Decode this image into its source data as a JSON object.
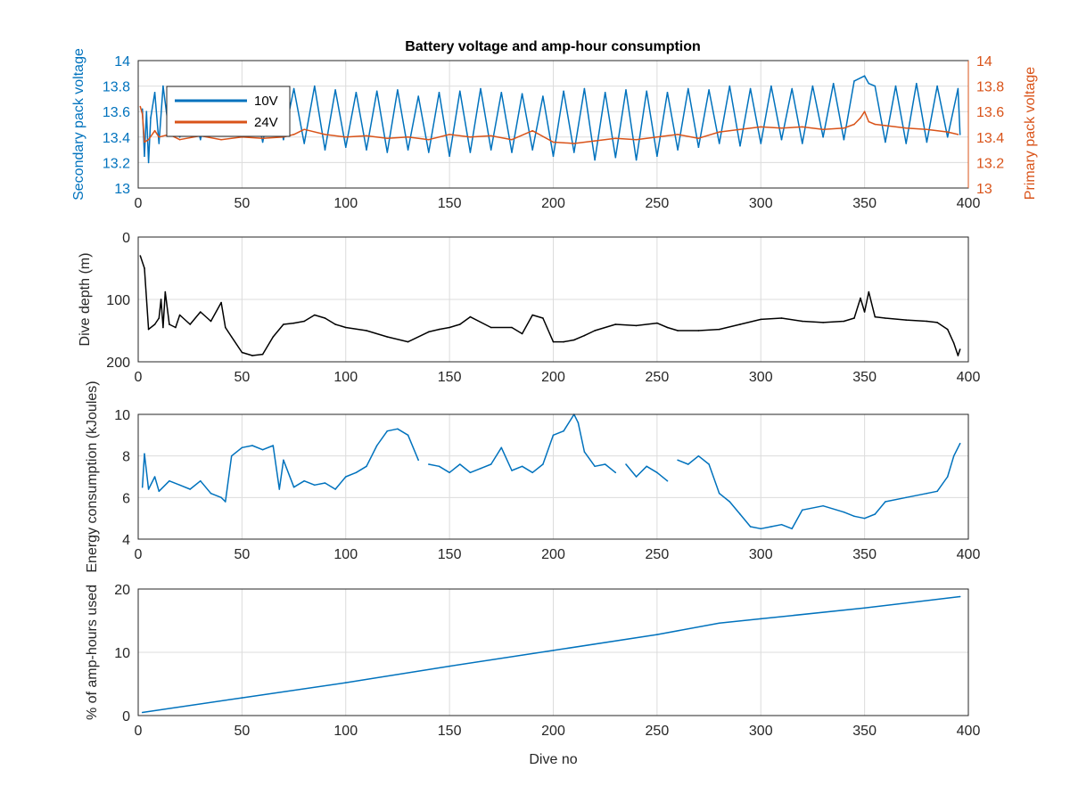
{
  "colors": {
    "blue": "#0072BD",
    "orange": "#D95319",
    "black": "#000000",
    "axis": "#262626",
    "grid": "#dcdcdc"
  },
  "chart_data": [
    {
      "type": "line",
      "title": "Battery voltage and amp-hour consumption",
      "xlabel": "",
      "ylabel": "Secondary pack voltage",
      "ylabel_right": "Primary pack voltage",
      "xlim": [
        0,
        400
      ],
      "ylim": [
        13,
        14
      ],
      "ylim_right": [
        13,
        14
      ],
      "x_ticks": [
        "0",
        "50",
        "100",
        "150",
        "200",
        "250",
        "300",
        "350",
        "400"
      ],
      "y_ticks": [
        "13",
        "13.2",
        "13.4",
        "13.6",
        "13.8",
        "14"
      ],
      "y_ticks_right": [
        "13",
        "13.2",
        "13.4",
        "13.6",
        "13.8",
        "14"
      ],
      "grid": true,
      "legend": "top-left",
      "series": [
        {
          "name": "10V",
          "axis": "left",
          "x": [
            2,
            3,
            4,
            5,
            6,
            8,
            10,
            12,
            15,
            18,
            20,
            25,
            30,
            35,
            40,
            45,
            50,
            55,
            60,
            65,
            70,
            75,
            80,
            85,
            90,
            95,
            100,
            105,
            110,
            115,
            120,
            125,
            130,
            135,
            140,
            145,
            150,
            155,
            160,
            165,
            170,
            175,
            180,
            185,
            190,
            195,
            200,
            205,
            210,
            215,
            220,
            225,
            230,
            235,
            240,
            245,
            250,
            255,
            260,
            265,
            270,
            275,
            280,
            285,
            290,
            295,
            300,
            305,
            310,
            315,
            320,
            325,
            330,
            335,
            340,
            345,
            350,
            352,
            355,
            360,
            365,
            370,
            375,
            380,
            385,
            390,
            395,
            396
          ],
          "values": [
            13.62,
            13.25,
            13.6,
            13.2,
            13.55,
            13.75,
            13.35,
            13.8,
            13.42,
            13.75,
            13.4,
            13.72,
            13.38,
            13.75,
            13.45,
            13.72,
            13.4,
            13.76,
            13.36,
            13.74,
            13.38,
            13.78,
            13.35,
            13.8,
            13.3,
            13.77,
            13.32,
            13.75,
            13.3,
            13.76,
            13.28,
            13.77,
            13.3,
            13.72,
            13.28,
            13.75,
            13.25,
            13.76,
            13.28,
            13.78,
            13.3,
            13.75,
            13.28,
            13.74,
            13.3,
            13.72,
            13.25,
            13.76,
            13.28,
            13.78,
            13.22,
            13.75,
            13.24,
            13.77,
            13.22,
            13.76,
            13.25,
            13.75,
            13.3,
            13.78,
            13.32,
            13.77,
            13.35,
            13.8,
            13.33,
            13.78,
            13.35,
            13.8,
            13.38,
            13.78,
            13.35,
            13.8,
            13.4,
            13.82,
            13.38,
            13.84,
            13.88,
            13.82,
            13.8,
            13.36,
            13.8,
            13.35,
            13.82,
            13.36,
            13.8,
            13.4,
            13.78,
            13.42
          ]
        },
        {
          "name": "24V",
          "axis": "right",
          "x": [
            1,
            2,
            3,
            5,
            8,
            10,
            15,
            20,
            30,
            40,
            50,
            60,
            70,
            75,
            80,
            90,
            100,
            110,
            120,
            130,
            140,
            150,
            160,
            170,
            180,
            190,
            200,
            210,
            220,
            230,
            240,
            250,
            260,
            270,
            280,
            290,
            300,
            310,
            320,
            330,
            340,
            345,
            348,
            350,
            352,
            355,
            360,
            370,
            380,
            390,
            395
          ],
          "values": [
            13.64,
            13.58,
            13.36,
            13.38,
            13.45,
            13.4,
            13.42,
            13.38,
            13.41,
            13.38,
            13.4,
            13.39,
            13.4,
            13.42,
            13.46,
            13.42,
            13.4,
            13.41,
            13.39,
            13.4,
            13.38,
            13.42,
            13.4,
            13.41,
            13.38,
            13.45,
            13.36,
            13.35,
            13.37,
            13.39,
            13.38,
            13.4,
            13.42,
            13.39,
            13.44,
            13.46,
            13.48,
            13.47,
            13.48,
            13.46,
            13.47,
            13.5,
            13.55,
            13.6,
            13.52,
            13.5,
            13.49,
            13.47,
            13.46,
            13.44,
            13.42
          ]
        }
      ]
    },
    {
      "type": "line",
      "xlabel": "",
      "ylabel": "Dive depth (m)",
      "xlim": [
        0,
        400
      ],
      "ylim": [
        0,
        200
      ],
      "y_reversed": true,
      "x_ticks": [
        "0",
        "50",
        "100",
        "150",
        "200",
        "250",
        "300",
        "350",
        "400"
      ],
      "y_ticks": [
        "0",
        "100",
        "200"
      ],
      "grid": true,
      "series": [
        {
          "x": [
            1,
            3,
            5,
            8,
            10,
            11,
            12,
            13,
            15,
            18,
            20,
            25,
            30,
            35,
            40,
            42,
            45,
            50,
            55,
            60,
            65,
            70,
            75,
            80,
            85,
            90,
            95,
            100,
            110,
            120,
            130,
            140,
            145,
            150,
            155,
            160,
            170,
            180,
            185,
            190,
            195,
            200,
            205,
            210,
            215,
            220,
            230,
            240,
            250,
            255,
            260,
            270,
            280,
            290,
            300,
            310,
            320,
            330,
            340,
            345,
            348,
            350,
            352,
            355,
            360,
            370,
            380,
            385,
            390,
            393,
            395,
            396
          ],
          "values": [
            30,
            50,
            148,
            140,
            130,
            100,
            145,
            88,
            140,
            145,
            125,
            140,
            120,
            135,
            105,
            145,
            160,
            185,
            190,
            188,
            160,
            140,
            138,
            135,
            125,
            130,
            140,
            145,
            150,
            160,
            168,
            152,
            148,
            145,
            140,
            128,
            145,
            145,
            155,
            125,
            130,
            168,
            168,
            165,
            158,
            150,
            140,
            142,
            138,
            145,
            150,
            150,
            148,
            140,
            132,
            130,
            135,
            137,
            135,
            130,
            98,
            120,
            88,
            128,
            130,
            133,
            135,
            137,
            148,
            170,
            190,
            180
          ]
        }
      ]
    },
    {
      "type": "line",
      "xlabel": "",
      "ylabel": "Energy consumption (kJoules)",
      "xlim": [
        0,
        400
      ],
      "ylim": [
        4,
        10
      ],
      "x_ticks": [
        "0",
        "50",
        "100",
        "150",
        "200",
        "250",
        "300",
        "350",
        "400"
      ],
      "y_ticks": [
        "4",
        "6",
        "8",
        "10"
      ],
      "grid": true,
      "series": [
        {
          "x": [
            2,
            3,
            5,
            8,
            10,
            15,
            20,
            25,
            30,
            35,
            40,
            42,
            45,
            50,
            55,
            60,
            65,
            68,
            70,
            75,
            80,
            85,
            90,
            95,
            100,
            105,
            110,
            115,
            120,
            125,
            130,
            135
          ],
          "values": [
            6.5,
            8.1,
            6.4,
            7.0,
            6.3,
            6.8,
            6.6,
            6.4,
            6.8,
            6.2,
            6.0,
            5.8,
            8.0,
            8.4,
            8.5,
            8.3,
            8.5,
            6.4,
            7.8,
            6.5,
            6.8,
            6.6,
            6.7,
            6.4,
            7.0,
            7.2,
            7.5,
            8.5,
            9.2,
            9.3,
            9.0,
            7.8
          ]
        },
        {
          "x": [
            140,
            145,
            150,
            155,
            160,
            165,
            170,
            175,
            180,
            185,
            190,
            195,
            200,
            205,
            210,
            212,
            215,
            220,
            225,
            230
          ],
          "values": [
            7.6,
            7.5,
            7.2,
            7.6,
            7.2,
            7.4,
            7.6,
            8.4,
            7.3,
            7.5,
            7.2,
            7.6,
            9.0,
            9.2,
            10.0,
            9.6,
            8.2,
            7.5,
            7.6,
            7.2
          ]
        },
        {
          "x": [
            235,
            240,
            245,
            250,
            255
          ],
          "values": [
            7.6,
            7.0,
            7.5,
            7.2,
            6.8
          ]
        },
        {
          "x": [
            260,
            265,
            270,
            275,
            280,
            285,
            290,
            295,
            300,
            305,
            310,
            315,
            320,
            330,
            340,
            345,
            350,
            355,
            360,
            370,
            380,
            385,
            390,
            393,
            396
          ],
          "values": [
            7.8,
            7.6,
            8.0,
            7.6,
            6.2,
            5.8,
            5.2,
            4.6,
            4.5,
            4.6,
            4.7,
            4.5,
            5.4,
            5.6,
            5.3,
            5.1,
            5.0,
            5.2,
            5.8,
            6.0,
            6.2,
            6.3,
            7.0,
            8.0,
            8.6
          ]
        }
      ]
    },
    {
      "type": "line",
      "xlabel": "Dive no",
      "ylabel": "% of amp-hours used",
      "xlim": [
        0,
        400
      ],
      "ylim": [
        0,
        20
      ],
      "x_ticks": [
        "0",
        "50",
        "100",
        "150",
        "200",
        "250",
        "300",
        "350",
        "400"
      ],
      "y_ticks": [
        "0",
        "10",
        "20"
      ],
      "grid": true,
      "series": [
        {
          "x": [
            2,
            50,
            100,
            150,
            200,
            250,
            280,
            300,
            350,
            396
          ],
          "values": [
            0.5,
            2.8,
            5.2,
            7.8,
            10.3,
            12.8,
            14.6,
            15.3,
            17.0,
            18.8
          ]
        }
      ]
    }
  ]
}
